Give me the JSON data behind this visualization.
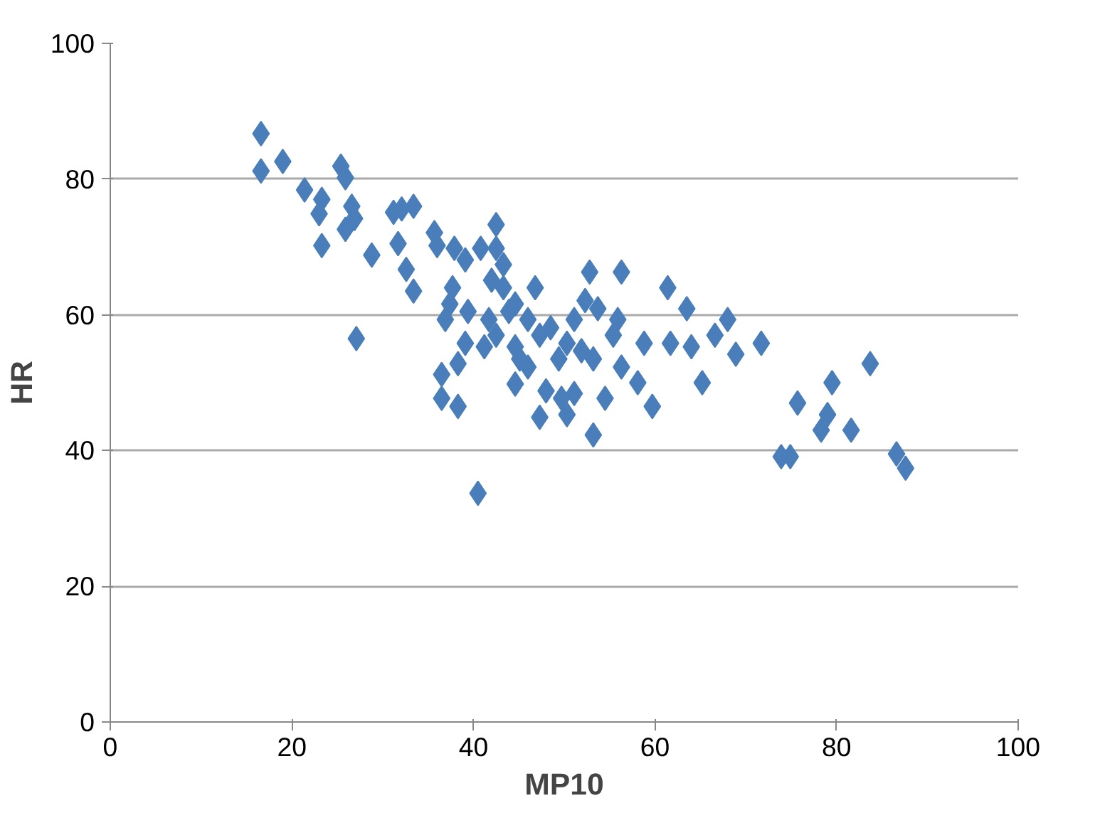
{
  "chart_data": {
    "type": "scatter",
    "xlabel": "MP10",
    "ylabel": "HR",
    "xlim": [
      0,
      100
    ],
    "ylim": [
      0,
      100
    ],
    "xticks": [
      0,
      20,
      40,
      60,
      80,
      100
    ],
    "yticks": [
      0,
      20,
      40,
      60,
      80,
      100
    ],
    "grid": "y",
    "marker": "diamond",
    "series": [
      {
        "color": "#4a7ebb",
        "x": [
          16.6,
          16.6,
          19,
          21.4,
          25.4,
          23.3,
          23,
          23.3,
          25.9,
          26.6,
          26.9,
          25.9,
          28.8,
          27.1,
          31.2,
          32.1,
          33.4,
          31.7,
          32.6,
          33.4,
          35.7,
          36,
          37.7,
          37.9,
          40.8,
          39.1,
          42.5,
          42.5,
          43.3,
          42,
          43.3,
          36.9,
          37.4,
          39.4,
          41.7,
          43.9,
          44.6,
          46,
          46.8,
          36.5,
          38.3,
          36.5,
          38.3,
          40.5,
          39.1,
          41.2,
          42.5,
          44.6,
          44.6,
          47.3,
          47.3,
          49.4,
          50.3,
          51.1,
          50.3,
          51.1,
          52.8,
          52.3,
          53.7,
          53.2,
          53.2,
          54.5,
          56.3,
          55.9,
          56.3,
          58.1,
          58.8,
          59.7,
          61.4,
          61.7,
          63.5,
          64,
          65.2,
          66.6,
          68,
          68.9,
          71.7,
          73.9,
          74.9,
          75.7,
          78.3,
          79,
          79.5,
          81.6,
          83.7,
          86.6,
          87.6,
          48.5,
          55.4,
          51.9,
          46,
          45.1,
          48,
          49.7
        ],
        "values": [
          86.7,
          81.2,
          82.6,
          78.4,
          81.9,
          77,
          74.9,
          70.2,
          80.2,
          76,
          74.2,
          72.6,
          68.8,
          56.5,
          75.1,
          75.6,
          76,
          70.5,
          66.7,
          63.5,
          72.1,
          70.2,
          64,
          69.8,
          69.8,
          68.1,
          73.3,
          69.8,
          67.4,
          65.1,
          64,
          59.3,
          61.6,
          60.5,
          59.3,
          60.5,
          61.6,
          59.3,
          64,
          51.2,
          52.8,
          47.7,
          46.5,
          33.7,
          55.8,
          55.3,
          57,
          55.3,
          49.8,
          57,
          44.9,
          53.5,
          55.8,
          59.3,
          45.3,
          48.4,
          66.3,
          62.1,
          60.9,
          53.5,
          42.3,
          47.7,
          66.3,
          59.3,
          52.3,
          50,
          55.8,
          46.5,
          64,
          55.8,
          60.9,
          55.3,
          50,
          57,
          59.3,
          54.2,
          55.8,
          39.1,
          39.1,
          47,
          43,
          45.3,
          50,
          43,
          52.8,
          39.5,
          37.4,
          58.1,
          57,
          54.7,
          52.3,
          53.5,
          48.8,
          47.7
        ]
      }
    ]
  }
}
